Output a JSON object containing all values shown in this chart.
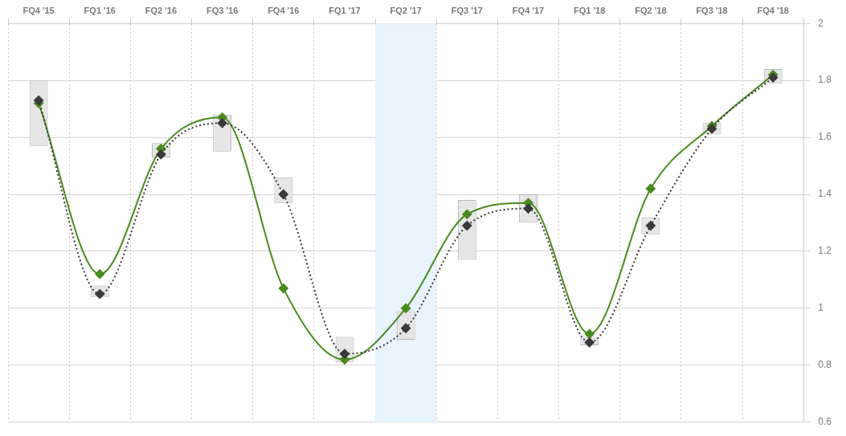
{
  "chart_data": {
    "type": "line",
    "categories": [
      "FQ4 '15",
      "FQ1 '16",
      "FQ2 '16",
      "FQ3 '16",
      "FQ4 '16",
      "FQ1 '17",
      "FQ2 '17",
      "FQ3 '17",
      "FQ4 '17",
      "FQ1 '18",
      "FQ2 '18",
      "FQ3 '18",
      "FQ4 '18"
    ],
    "series": [
      {
        "type": "bar",
        "color": "#e6e6e6",
        "base": [
          1.57,
          1.04,
          1.53,
          1.55,
          1.37,
          0.81,
          0.89,
          1.17,
          1.3,
          0.87,
          1.26,
          1.61,
          1.79
        ],
        "values": [
          0.23,
          0.04,
          0.05,
          0.13,
          0.09,
          0.09,
          0.1,
          0.21,
          0.1,
          0.03,
          0.06,
          0.04,
          0.05
        ]
      },
      {
        "color": "#3a3a3a",
        "line_style": "dotted",
        "marker": "diamond",
        "values": [
          1.73,
          1.05,
          1.54,
          1.65,
          1.4,
          0.84,
          0.93,
          1.29,
          1.35,
          0.88,
          1.29,
          1.63,
          1.81
        ]
      },
      {
        "color": "#4a8a1e",
        "line_style": "solid",
        "marker": "diamond",
        "values": [
          1.72,
          1.12,
          1.56,
          1.67,
          1.07,
          0.82,
          1.0,
          1.33,
          1.37,
          0.91,
          1.42,
          1.64,
          1.82
        ]
      }
    ],
    "ylim": [
      0.6,
      2
    ],
    "yticks": [
      0.6,
      0.8,
      1,
      1.2,
      1.4,
      1.6,
      1.8,
      2
    ],
    "bands": [
      {
        "axis": "x",
        "from": "FQ2 '17",
        "to": "FQ2 '17",
        "color": "#e8f3fb"
      }
    ],
    "grid": true,
    "legend": false
  }
}
